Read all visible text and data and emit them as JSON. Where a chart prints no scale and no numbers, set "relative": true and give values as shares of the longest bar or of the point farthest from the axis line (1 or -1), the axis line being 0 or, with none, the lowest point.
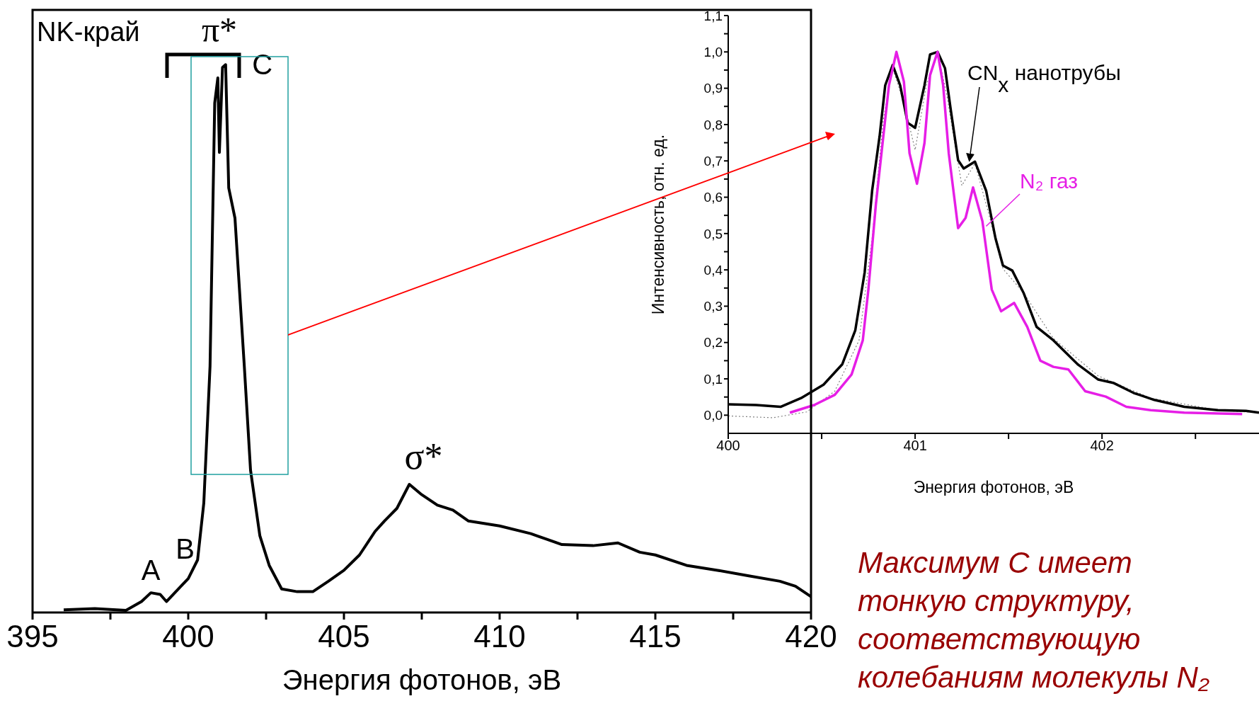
{
  "chart_data": [
    {
      "type": "line",
      "xlabel": "Энергия фотонов, эВ",
      "relative": true,
      "xlim": [
        395,
        420
      ],
      "xticks": [
        395,
        {
          "value": 397.5,
          "label": null
        },
        400,
        {
          "value": 402.5,
          "label": null
        },
        405,
        {
          "value": 407.5,
          "label": null
        },
        410,
        {
          "value": 412.5,
          "label": null
        },
        415,
        {
          "value": 417.5,
          "label": null
        },
        420
      ],
      "grid": false,
      "legend": false,
      "marker": "none",
      "line_style": "solid",
      "color": "#000000",
      "x": [
        396,
        397,
        398,
        398.5,
        398.8,
        399.1,
        399.3,
        399.6,
        400,
        400.3,
        400.5,
        400.7,
        400.85,
        400.95,
        401.0,
        401.1,
        401.2,
        401.3,
        401.5,
        401.8,
        402,
        402.3,
        402.6,
        403,
        403.5,
        404,
        404.5,
        405,
        405.5,
        406,
        406.3,
        406.7,
        407.1,
        407.5,
        408,
        408.5,
        409,
        410,
        411,
        412,
        413,
        413.8,
        414.5,
        415,
        416,
        417,
        418,
        419,
        419.5,
        420
      ],
      "values": [
        0.005,
        0.007,
        0.004,
        0.02,
        0.036,
        0.033,
        0.02,
        0.038,
        0.062,
        0.096,
        0.2,
        0.45,
        0.93,
        0.976,
        0.84,
        0.995,
        1.0,
        0.775,
        0.72,
        0.45,
        0.26,
        0.14,
        0.086,
        0.043,
        0.038,
        0.038,
        0.057,
        0.077,
        0.105,
        0.148,
        0.167,
        0.19,
        0.234,
        0.215,
        0.196,
        0.187,
        0.167,
        0.158,
        0.144,
        0.124,
        0.122,
        0.127,
        0.11,
        0.105,
        0.086,
        0.077,
        0.067,
        0.057,
        0.048,
        0.029
      ],
      "annotations": [
        "NK-край",
        {
          "text": "A",
          "x": 398.8,
          "y": 0.036
        },
        {
          "text": "B",
          "x": 399.9,
          "y": 0.06
        },
        {
          "text": "C",
          "x": 401.2,
          "y": 1.0
        },
        {
          "text": "π*",
          "x": 401.0,
          "y": 1.0
        },
        {
          "text": "σ*",
          "x": 407.1,
          "y": 0.234
        }
      ]
    },
    {
      "type": "line",
      "xlabel": "Энергия фотонов, эВ",
      "ylabel": "Интенсивность, отн. ед.",
      "xlim": [
        400,
        402.84
      ],
      "xticks": [
        400,
        {
          "value": 400.5,
          "label": null
        },
        401,
        {
          "value": 401.5,
          "label": null
        },
        402,
        {
          "value": 402.5,
          "label": null
        }
      ],
      "ylim": [
        -0.05,
        1.1
      ],
      "yticks": [
        {
          "value": 0,
          "label": "0,0"
        },
        {
          "value": 0.05,
          "label": null
        },
        {
          "value": 0.1,
          "label": "0,1"
        },
        {
          "value": 0.15,
          "label": null
        },
        {
          "value": 0.2,
          "label": "0,2"
        },
        {
          "value": 0.25,
          "label": null
        },
        {
          "value": 0.3,
          "label": "0,3"
        },
        {
          "value": 0.35,
          "label": null
        },
        {
          "value": 0.4,
          "label": "0,4"
        },
        {
          "value": 0.45,
          "label": null
        },
        {
          "value": 0.5,
          "label": "0,5"
        },
        {
          "value": 0.55,
          "label": null
        },
        {
          "value": 0.6,
          "label": "0,6"
        },
        {
          "value": 0.65,
          "label": null
        },
        {
          "value": 0.7,
          "label": "0,7"
        },
        {
          "value": 0.75,
          "label": null
        },
        {
          "value": 0.8,
          "label": "0,8"
        },
        {
          "value": 0.85,
          "label": null
        },
        {
          "value": 0.9,
          "label": "0,9"
        },
        {
          "value": 0.95,
          "label": null
        },
        {
          "value": 1.0,
          "label": "1,0"
        },
        {
          "value": 1.05,
          "label": null
        },
        {
          "value": 1.1,
          "label": "1,1"
        }
      ],
      "grid": false,
      "legend": false,
      "marker": "none",
      "series": [
        {
          "color": "#808080",
          "line_style": "dotted",
          "x": [
            400,
            400.24,
            400.42,
            400.57,
            400.7,
            400.77,
            400.83,
            400.88,
            400.94,
            401.0,
            401.06,
            401.12,
            401.17,
            401.25,
            401.32,
            401.39,
            401.47,
            401.58,
            401.74,
            401.98,
            402.26,
            402.62,
            402.84
          ],
          "values": [
            -0.002,
            -0.007,
            0.009,
            0.066,
            0.206,
            0.487,
            0.815,
            0.955,
            0.861,
            0.73,
            0.908,
            1.0,
            0.88,
            0.632,
            0.693,
            0.562,
            0.403,
            0.337,
            0.211,
            0.108,
            0.047,
            0.014,
            0.007
          ]
        },
        {
          "name": "CN$_{x}$ нанотрубы",
          "color": "#000000",
          "line_style": "solid",
          "x": [
            400,
            400.15,
            400.28,
            400.39,
            400.51,
            400.61,
            400.68,
            400.73,
            400.77,
            400.81,
            400.84,
            400.88,
            400.92,
            400.96,
            401.0,
            401.05,
            401.08,
            401.12,
            401.16,
            401.19,
            401.23,
            401.26,
            401.32,
            401.38,
            401.43,
            401.47,
            401.52,
            401.58,
            401.65,
            401.74,
            401.87,
            401.98,
            402.06,
            402.17,
            402.2,
            402.28,
            402.44,
            402.62,
            402.77,
            402.84
          ],
          "values": [
            0.03,
            0.028,
            0.023,
            0.047,
            0.084,
            0.14,
            0.234,
            0.393,
            0.618,
            0.768,
            0.908,
            0.964,
            0.908,
            0.805,
            0.791,
            0.908,
            0.993,
            1.0,
            0.955,
            0.843,
            0.702,
            0.679,
            0.698,
            0.618,
            0.487,
            0.412,
            0.398,
            0.337,
            0.243,
            0.206,
            0.14,
            0.098,
            0.089,
            0.061,
            0.056,
            0.042,
            0.023,
            0.014,
            0.012,
            0.007
          ]
        },
        {
          "name": "N₂ газ",
          "color": "#e61ee6",
          "line_style": "solid",
          "x": [
            400.33,
            400.46,
            400.57,
            400.66,
            400.72,
            400.75,
            400.79,
            400.83,
            400.86,
            400.9,
            400.94,
            400.97,
            401.01,
            401.05,
            401.08,
            401.12,
            401.15,
            401.18,
            401.23,
            401.27,
            401.31,
            401.36,
            401.41,
            401.46,
            401.53,
            401.6,
            401.67,
            401.74,
            401.82,
            401.91,
            402.02,
            402.13,
            402.26,
            402.44,
            402.75
          ],
          "values": [
            0.007,
            0.028,
            0.056,
            0.112,
            0.206,
            0.346,
            0.58,
            0.768,
            0.908,
            1.0,
            0.918,
            0.721,
            0.637,
            0.749,
            0.936,
            1.0,
            0.908,
            0.721,
            0.515,
            0.543,
            0.627,
            0.534,
            0.346,
            0.286,
            0.309,
            0.243,
            0.15,
            0.133,
            0.126,
            0.066,
            0.051,
            0.023,
            0.014,
            0.007,
            0.003
          ]
        }
      ],
      "annotations": [
        "Максимум С имеет\nтонкую структуру,\nсоответствующую\nколебаниям молекулы N₂"
      ]
    }
  ]
}
